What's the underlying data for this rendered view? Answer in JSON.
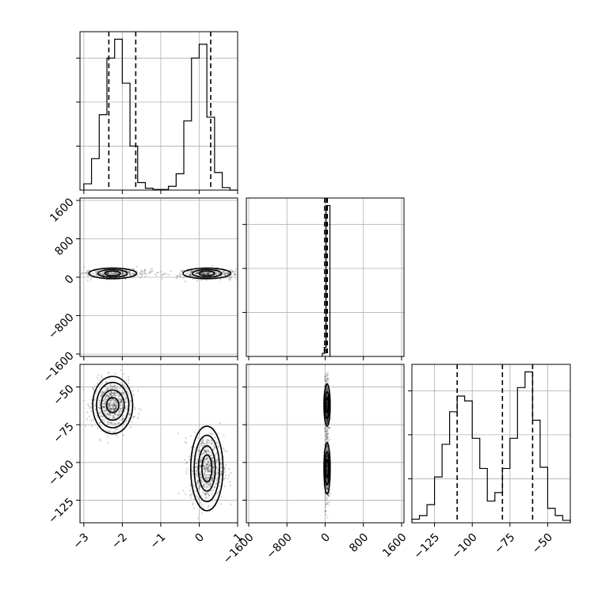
{
  "chart_data": {
    "type": "corner",
    "parameters": [
      {
        "range": [
          -3.1,
          1.0
        ],
        "ticks": [
          -3,
          -2,
          -1,
          0,
          1
        ],
        "tick_labels": [
          "−3",
          "−2",
          "−1",
          "0",
          "1"
        ]
      },
      {
        "range": [
          -1650,
          1650
        ],
        "ticks": [
          -1600,
          -800,
          0,
          800,
          1600
        ],
        "tick_labels": [
          "−1600",
          "−800",
          "0",
          "800",
          "1600"
        ]
      },
      {
        "range": [
          -140,
          -35
        ],
        "ticks": [
          -125,
          -100,
          -75,
          -50
        ],
        "tick_labels": [
          "−125",
          "−100",
          "−75",
          "−50"
        ]
      }
    ],
    "grid": true,
    "histograms": [
      {
        "parameter_index": 0,
        "bin_edges": [
          -3.0,
          -2.8,
          -2.6,
          -2.4,
          -2.2,
          -2.0,
          -1.8,
          -1.6,
          -1.4,
          -1.2,
          -1.0,
          -0.8,
          -0.6,
          -0.4,
          -0.2,
          0.0,
          0.2,
          0.4,
          0.6,
          0.8,
          1.0
        ],
        "counts": [
          0.5,
          2.5,
          6,
          10.5,
          12,
          8.5,
          3.5,
          0.6,
          0.15,
          0.05,
          0.05,
          0.3,
          1.3,
          5.5,
          10.5,
          11.6,
          5.8,
          1.4,
          0.2,
          0.0
        ],
        "quantiles": [
          -2.35,
          -1.65,
          0.3
        ]
      },
      {
        "parameter_index": 1,
        "bin_edges": [
          -60,
          -20,
          20,
          60,
          80,
          100,
          120
        ],
        "counts": [
          0.02,
          0.06,
          1.0,
          1.0,
          1.0,
          0.0
        ],
        "quantiles": [
          -10,
          25,
          45
        ]
      },
      {
        "parameter_index": 2,
        "bin_edges": [
          -140,
          -135,
          -130,
          -125,
          -120,
          -115,
          -110,
          -105,
          -100,
          -95,
          -90,
          -85,
          -80,
          -75,
          -70,
          -65,
          -60,
          -55,
          -50,
          -45,
          -40,
          -35
        ],
        "counts": [
          0.3,
          0.6,
          1.5,
          3.8,
          6.5,
          9.2,
          10.5,
          10.1,
          7.0,
          4.5,
          1.8,
          2.5,
          4.5,
          7.0,
          11.2,
          12.5,
          8.5,
          4.6,
          1.2,
          0.6,
          0.2
        ],
        "quantiles": [
          -110,
          -80,
          -60
        ]
      }
    ],
    "scatter_panels": [
      {
        "x_index": 0,
        "y_index": 1,
        "clusters": [
          {
            "center_x": -2.25,
            "center_y": 80,
            "spread_x": 0.3,
            "spread_y": 50,
            "count": 320
          },
          {
            "center_x": 0.2,
            "center_y": 80,
            "spread_x": 0.3,
            "spread_y": 50,
            "count": 320
          }
        ],
        "contours": [
          {
            "center_x": -2.25,
            "center_y": 80,
            "rx": [
              0.2,
              0.38,
              0.62
            ],
            "ry": [
              50,
              80,
              110
            ]
          },
          {
            "center_x": 0.2,
            "center_y": 80,
            "rx": [
              0.2,
              0.38,
              0.62
            ],
            "ry": [
              50,
              80,
              110
            ]
          }
        ]
      },
      {
        "x_index": 0,
        "y_index": 2,
        "clusters": [
          {
            "center_x": -2.25,
            "center_y": -62,
            "spread_x": 0.25,
            "spread_y": 8,
            "count": 650
          },
          {
            "center_x": 0.2,
            "center_y": -104,
            "spread_x": 0.22,
            "spread_y": 11,
            "count": 650
          }
        ],
        "contours": [
          {
            "center_x": -2.25,
            "center_y": -62,
            "rx": [
              0.16,
              0.3,
              0.42,
              0.52
            ],
            "ry": [
              5,
              10,
              15,
              19
            ]
          },
          {
            "center_x": 0.2,
            "center_y": -104,
            "rx": [
              0.13,
              0.22,
              0.33,
              0.42
            ],
            "ry": [
              9,
              15,
              22,
              28
            ]
          }
        ]
      },
      {
        "x_index": 1,
        "y_index": 2,
        "clusters": [
          {
            "center_x": 40,
            "center_y": -62,
            "spread_x": 25,
            "spread_y": 9,
            "count": 420
          },
          {
            "center_x": 40,
            "center_y": -104,
            "spread_x": 25,
            "spread_y": 12,
            "count": 420
          }
        ],
        "contours": [
          {
            "center_x": 40,
            "center_y": -62,
            "rx": [
              25,
              45,
              65
            ],
            "ry": [
              5,
              9,
              14
            ]
          },
          {
            "center_x": 40,
            "center_y": -104,
            "rx": [
              25,
              45,
              65
            ],
            "ry": [
              6,
              11,
              17
            ]
          }
        ]
      }
    ]
  }
}
